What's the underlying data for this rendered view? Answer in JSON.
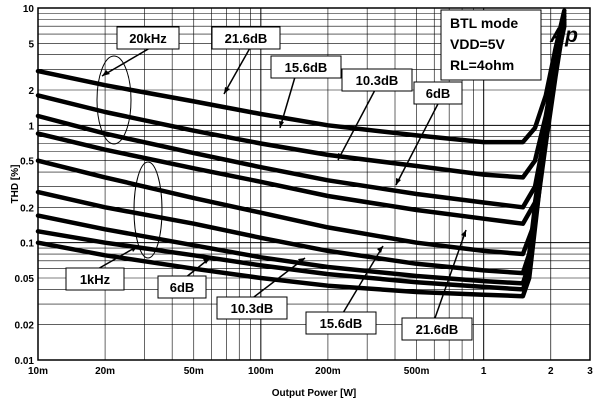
{
  "chart_data": {
    "type": "line",
    "title": "",
    "xlabel": "Output Power [W]",
    "ylabel": "THD [%]",
    "x_scale": "log",
    "y_scale": "log",
    "xlim": [
      0.01,
      3
    ],
    "ylim": [
      0.01,
      10
    ],
    "grid": true,
    "x_ticks": [
      {
        "value": 0.01,
        "label": "10m"
      },
      {
        "value": 0.02,
        "label": "20m"
      },
      {
        "value": 0.05,
        "label": "50m"
      },
      {
        "value": 0.1,
        "label": "100m"
      },
      {
        "value": 0.2,
        "label": "200m"
      },
      {
        "value": 0.5,
        "label": "500m"
      },
      {
        "value": 1,
        "label": "1"
      },
      {
        "value": 2,
        "label": "2"
      },
      {
        "value": 3,
        "label": "3"
      }
    ],
    "y_ticks": [
      {
        "value": 0.01,
        "label": "0.01"
      },
      {
        "value": 0.02,
        "label": "0.02"
      },
      {
        "value": 0.05,
        "label": "0.05"
      },
      {
        "value": 0.1,
        "label": "0.1"
      },
      {
        "value": 0.2,
        "label": "0.2"
      },
      {
        "value": 0.5,
        "label": "0.5"
      },
      {
        "value": 1,
        "label": "1"
      },
      {
        "value": 2,
        "label": "2"
      },
      {
        "value": 5,
        "label": "5"
      },
      {
        "value": 10,
        "label": "10"
      }
    ],
    "series": [
      {
        "x": [
          0.01,
          0.02,
          0.05,
          0.1,
          0.2,
          0.5,
          1,
          1.5,
          1.7,
          1.9,
          2.1,
          2.3
        ],
        "y": [
          2.9,
          2.2,
          1.6,
          1.25,
          1.0,
          0.82,
          0.72,
          0.72,
          0.95,
          1.8,
          4.5,
          9.5
        ]
      },
      {
        "x": [
          0.01,
          0.02,
          0.05,
          0.1,
          0.2,
          0.5,
          1,
          1.5,
          1.7,
          1.9,
          2.1,
          2.3
        ],
        "y": [
          1.8,
          1.3,
          0.9,
          0.7,
          0.56,
          0.45,
          0.38,
          0.36,
          0.5,
          1.2,
          3.5,
          9.0
        ]
      },
      {
        "x": [
          0.01,
          0.02,
          0.05,
          0.1,
          0.2,
          0.5,
          1,
          1.5,
          1.7,
          1.9,
          2.1,
          2.3
        ],
        "y": [
          1.2,
          0.85,
          0.58,
          0.44,
          0.34,
          0.26,
          0.22,
          0.2,
          0.3,
          0.9,
          3.0,
          8.5
        ]
      },
      {
        "x": [
          0.01,
          0.02,
          0.05,
          0.1,
          0.2,
          0.5,
          1,
          1.5,
          1.7,
          1.9,
          2.1,
          2.3
        ],
        "y": [
          0.85,
          0.62,
          0.43,
          0.33,
          0.25,
          0.19,
          0.16,
          0.145,
          0.22,
          0.8,
          2.8,
          8.0
        ]
      },
      {
        "x": [
          0.01,
          0.02,
          0.05,
          0.1,
          0.2,
          0.5,
          1,
          1.5,
          1.7,
          1.9,
          2.1,
          2.3
        ],
        "y": [
          0.5,
          0.36,
          0.24,
          0.18,
          0.135,
          0.1,
          0.085,
          0.08,
          0.15,
          0.7,
          2.6,
          7.8
        ]
      },
      {
        "x": [
          0.01,
          0.02,
          0.05,
          0.1,
          0.2,
          0.5,
          1,
          1.5,
          1.6,
          1.8,
          2.0,
          2.3
        ],
        "y": [
          0.27,
          0.2,
          0.145,
          0.11,
          0.085,
          0.066,
          0.058,
          0.055,
          0.08,
          0.5,
          2.3,
          7.5
        ]
      },
      {
        "x": [
          0.01,
          0.02,
          0.05,
          0.1,
          0.2,
          0.5,
          1,
          1.5,
          1.6,
          1.8,
          2.0,
          2.3
        ],
        "y": [
          0.17,
          0.13,
          0.095,
          0.075,
          0.062,
          0.052,
          0.047,
          0.045,
          0.065,
          0.45,
          2.2,
          7.3
        ]
      },
      {
        "x": [
          0.01,
          0.02,
          0.05,
          0.1,
          0.2,
          0.5,
          1,
          1.5,
          1.6,
          1.8,
          2.0,
          2.3
        ],
        "y": [
          0.125,
          0.1,
          0.078,
          0.064,
          0.054,
          0.046,
          0.042,
          0.04,
          0.055,
          0.4,
          2.1,
          7.2
        ]
      },
      {
        "x": [
          0.01,
          0.02,
          0.05,
          0.1,
          0.2,
          0.5,
          1,
          1.5,
          1.6,
          1.8,
          2.0,
          2.3
        ],
        "y": [
          0.1,
          0.078,
          0.06,
          0.05,
          0.043,
          0.038,
          0.036,
          0.035,
          0.05,
          0.35,
          2.0,
          7.0
        ]
      }
    ],
    "annotations": [
      {
        "text": "20kHz",
        "box": true
      },
      {
        "text": "21.6dB",
        "box": true
      },
      {
        "text": "15.6dB",
        "box": true
      },
      {
        "text": "10.3dB",
        "box": true
      },
      {
        "text": "6dB",
        "box": true
      },
      {
        "text": "1kHz",
        "box": true
      },
      {
        "text": "6dB",
        "box": true
      },
      {
        "text": "10.3dB",
        "box": true
      },
      {
        "text": "15.6dB",
        "box": true
      },
      {
        "text": "21.6dB",
        "box": true
      }
    ],
    "info_box": [
      "BTL mode",
      "VDD=5V",
      "RL=4ohm"
    ],
    "logo": "Ap"
  }
}
